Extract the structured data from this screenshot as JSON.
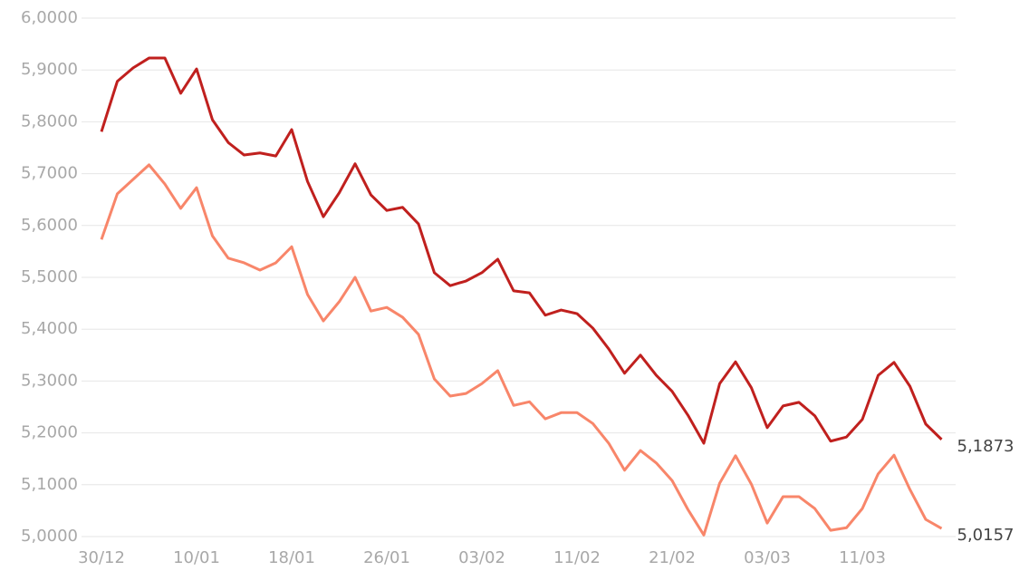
{
  "chart_data": {
    "type": "line",
    "categories": [
      "30/12",
      null,
      null,
      null,
      null,
      null,
      "10/01",
      null,
      null,
      null,
      null,
      null,
      "18/01",
      null,
      null,
      null,
      null,
      null,
      "26/01",
      null,
      null,
      null,
      null,
      null,
      "03/02",
      null,
      null,
      null,
      null,
      null,
      "11/02",
      null,
      null,
      null,
      null,
      null,
      "21/02",
      null,
      null,
      null,
      null,
      null,
      "03/03",
      null,
      null,
      null,
      null,
      null,
      "11/03",
      null,
      null,
      null,
      null,
      null
    ],
    "series": [
      {
        "color": "#c0201e",
        "values": [
          5.781,
          5.878,
          5.904,
          5.923,
          5.923,
          5.855,
          5.902,
          5.804,
          5.76,
          5.736,
          5.74,
          5.734,
          5.785,
          5.685,
          5.617,
          5.663,
          5.719,
          5.659,
          5.629,
          5.635,
          5.603,
          5.509,
          5.484,
          5.493,
          5.509,
          5.535,
          5.474,
          5.47,
          5.427,
          5.437,
          5.43,
          5.402,
          5.362,
          5.315,
          5.35,
          5.311,
          5.28,
          5.234,
          5.18,
          5.295,
          5.337,
          5.287,
          5.21,
          5.252,
          5.259,
          5.233,
          5.184,
          5.192,
          5.226,
          5.311,
          5.336,
          5.29,
          5.217,
          5.1873
        ],
        "value_labels": [
          null,
          null,
          null,
          null,
          null,
          null,
          null,
          null,
          null,
          null,
          null,
          null,
          null,
          null,
          null,
          null,
          null,
          null,
          null,
          null,
          null,
          null,
          null,
          null,
          null,
          null,
          null,
          null,
          null,
          null,
          null,
          null,
          null,
          null,
          null,
          null,
          null,
          null,
          null,
          null,
          null,
          null,
          null,
          null,
          null,
          null,
          null,
          null,
          null,
          null,
          null,
          null,
          null,
          "5,1873"
        ]
      },
      {
        "color": "#f8866a",
        "values": [
          5.573,
          5.661,
          5.689,
          5.717,
          5.68,
          5.633,
          5.673,
          5.58,
          5.537,
          5.528,
          5.514,
          5.528,
          5.559,
          5.467,
          5.416,
          5.453,
          5.5,
          5.435,
          5.442,
          5.423,
          5.39,
          5.304,
          5.271,
          5.276,
          5.295,
          5.32,
          5.253,
          5.26,
          5.227,
          5.239,
          5.239,
          5.218,
          5.18,
          5.128,
          5.166,
          5.142,
          5.108,
          5.052,
          5.003,
          5.103,
          5.156,
          5.101,
          5.026,
          5.077,
          5.077,
          5.054,
          5.012,
          5.017,
          5.054,
          5.121,
          5.157,
          5.091,
          5.033,
          5.0157
        ],
        "value_labels": [
          null,
          null,
          null,
          null,
          null,
          null,
          null,
          null,
          null,
          null,
          null,
          null,
          null,
          null,
          null,
          null,
          null,
          null,
          null,
          null,
          null,
          null,
          null,
          null,
          null,
          null,
          null,
          null,
          null,
          null,
          null,
          null,
          null,
          null,
          null,
          null,
          null,
          null,
          null,
          null,
          null,
          null,
          null,
          null,
          null,
          null,
          null,
          null,
          null,
          null,
          null,
          null,
          null,
          "5,0157"
        ]
      }
    ],
    "ylim": [
      5,
      6
    ],
    "yticks": [
      {
        "value": 5,
        "label": "5,0000"
      },
      {
        "value": 5.1,
        "label": "5,1000"
      },
      {
        "value": 5.2,
        "label": "5,2000"
      },
      {
        "value": 5.3,
        "label": "5,3000"
      },
      {
        "value": 5.4,
        "label": "5,4000"
      },
      {
        "value": 5.5,
        "label": "5,5000"
      },
      {
        "value": 5.6,
        "label": "5,6000"
      },
      {
        "value": 5.7,
        "label": "5,7000"
      },
      {
        "value": 5.8,
        "label": "5,8000"
      },
      {
        "value": 5.9,
        "label": "5,9000"
      },
      {
        "value": 6,
        "label": "6,0000"
      }
    ],
    "grid": true
  }
}
